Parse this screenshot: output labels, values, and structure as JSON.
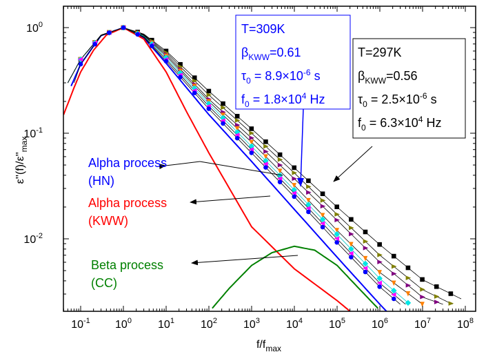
{
  "chart_data": {
    "type": "line",
    "title": "",
    "xlabel": {
      "main": "f/f",
      "sub": "max"
    },
    "ylabel": {
      "a": "ε''(f)/ε''",
      "sub": "max"
    },
    "xscale": "log",
    "yscale": "log",
    "xlim": [
      0.04,
      100000000
    ],
    "ylim": [
      0.0022,
      1.5
    ],
    "grid": false,
    "x_ticks": [
      {
        "v": 0.1,
        "base": "10",
        "exp": "-1"
      },
      {
        "v": 1,
        "base": "10",
        "exp": "0"
      },
      {
        "v": 10,
        "base": "10",
        "exp": "1"
      },
      {
        "v": 100,
        "base": "10",
        "exp": "2"
      },
      {
        "v": 1000,
        "base": "10",
        "exp": "3"
      },
      {
        "v": 10000,
        "base": "10",
        "exp": "4"
      },
      {
        "v": 100000,
        "base": "10",
        "exp": "5"
      },
      {
        "v": 1000000,
        "base": "10",
        "exp": "6"
      },
      {
        "v": 10000000,
        "base": "10",
        "exp": "7"
      },
      {
        "v": 100000000,
        "base": "10",
        "exp": "8"
      }
    ],
    "y_ticks": [
      {
        "v": 1,
        "base": "10",
        "exp": "0"
      },
      {
        "v": 0.1,
        "base": "10",
        "exp": "-1"
      },
      {
        "v": 0.01,
        "base": "10",
        "exp": "-2"
      }
    ],
    "series": [
      {
        "color": "#000000",
        "marker": "square",
        "x": [
          0.05,
          0.1,
          0.3,
          1,
          3,
          10,
          100,
          1000,
          10000,
          100000,
          1000000,
          10000000,
          80000000
        ],
        "y": [
          0.3,
          0.5,
          0.85,
          1,
          0.87,
          0.6,
          0.25,
          0.11,
          0.047,
          0.02,
          0.0088,
          0.0041,
          0.0027
        ]
      },
      {
        "color": "#808000",
        "marker": "triangle-right",
        "x": [
          0.05,
          0.1,
          0.3,
          1,
          3,
          10,
          100,
          1000,
          10000,
          100000,
          1000000,
          10000000,
          50000000
        ],
        "y": [
          0.3,
          0.5,
          0.85,
          1,
          0.86,
          0.58,
          0.23,
          0.1,
          0.042,
          0.017,
          0.007,
          0.0033,
          0.0024
        ]
      },
      {
        "color": "#800080",
        "marker": "triangle-right",
        "x": [
          0.05,
          0.1,
          0.3,
          1,
          3,
          10,
          100,
          1000,
          10000,
          100000,
          1000000,
          10000000,
          30000000
        ],
        "y": [
          0.3,
          0.5,
          0.85,
          1,
          0.85,
          0.56,
          0.21,
          0.09,
          0.037,
          0.015,
          0.006,
          0.0028,
          0.0024
        ]
      },
      {
        "color": "#ff8000",
        "marker": "triangle-down",
        "x": [
          0.05,
          0.1,
          0.3,
          1,
          3,
          10,
          100,
          1000,
          10000,
          100000,
          1000000,
          10000000
        ],
        "y": [
          0.3,
          0.5,
          0.85,
          1,
          0.84,
          0.54,
          0.2,
          0.082,
          0.032,
          0.012,
          0.0048,
          0.0024
        ]
      },
      {
        "color": "#00e5e5",
        "marker": "diamond",
        "x": [
          0.05,
          0.1,
          0.3,
          1,
          3,
          10,
          100,
          1000,
          10000,
          100000,
          1000000,
          5000000
        ],
        "y": [
          0.3,
          0.5,
          0.84,
          1,
          0.83,
          0.52,
          0.19,
          0.075,
          0.029,
          0.011,
          0.0042,
          0.0024
        ]
      },
      {
        "color": "#ff00ff",
        "marker": "triangle-left",
        "x": [
          0.05,
          0.1,
          0.3,
          1,
          3,
          10,
          100,
          1000,
          10000,
          100000,
          1000000,
          4000000
        ],
        "y": [
          0.3,
          0.5,
          0.84,
          1,
          0.82,
          0.5,
          0.18,
          0.07,
          0.027,
          0.01,
          0.0038,
          0.0024
        ]
      },
      {
        "color": "#0000ff",
        "marker": "circle",
        "x": [
          0.07,
          0.1,
          0.3,
          1,
          3,
          10,
          100,
          1000,
          10000,
          100000,
          1000000,
          3000000
        ],
        "y": [
          0.3,
          0.45,
          0.84,
          1,
          0.81,
          0.48,
          0.17,
          0.065,
          0.025,
          0.0092,
          0.0035,
          0.0024
        ]
      }
    ],
    "fits": [
      {
        "color": "#0000ff",
        "x": [
          0.06,
          0.1,
          0.3,
          1,
          3,
          10,
          100,
          1000,
          10000,
          100000,
          1000000,
          3000000
        ],
        "y": [
          0.28,
          0.45,
          0.84,
          1,
          0.8,
          0.46,
          0.15,
          0.054,
          0.019,
          0.0067,
          0.0024,
          0.0015
        ]
      },
      {
        "color": "#ff0000",
        "x": [
          0.04,
          0.07,
          0.1,
          0.2,
          0.4,
          1,
          3,
          10,
          30,
          100,
          1000,
          10000,
          100000,
          300000
        ],
        "y": [
          0.15,
          0.27,
          0.38,
          0.61,
          0.85,
          1,
          0.78,
          0.38,
          0.16,
          0.065,
          0.013,
          0.0052,
          0.0026,
          0.0018
        ]
      },
      {
        "color": "#008000",
        "x": [
          120,
          300,
          1000,
          3000,
          10000,
          30000,
          100000,
          300000,
          900000
        ],
        "y": [
          0.0022,
          0.0034,
          0.0056,
          0.0074,
          0.0085,
          0.0078,
          0.0056,
          0.0035,
          0.0022
        ]
      }
    ],
    "annotations": {
      "t309": {
        "line1": "T=309K",
        "beta": "β",
        "beta_sub": "KWW",
        "beta_val": "=0.61",
        "tau": "τ",
        "tau_sub": "0",
        "tau_val": " = 8.9×10",
        "tau_exp": "-6",
        "tau_unit": " s",
        "f": "f",
        "f_sub": "0",
        "f_val": " = 1.8×10",
        "f_exp": "4",
        "f_unit": " Hz"
      },
      "t297": {
        "line1": "T=297K",
        "beta": "β",
        "beta_sub": "KWW",
        "beta_val": "=0.56",
        "tau": "τ",
        "tau_sub": "0",
        "tau_val": " = 2.5×10",
        "tau_exp": "-6",
        "tau_unit": " s",
        "f": "f",
        "f_sub": "0",
        "f_val": " = 6.3×10",
        "f_exp": "4",
        "f_unit": " Hz"
      }
    },
    "labels": [
      {
        "line1": "Alpha process",
        "line2": "(HN)",
        "color": "#0000ff"
      },
      {
        "line1": "Alpha process",
        "line2": "(KWW)",
        "color": "#ff0000"
      },
      {
        "line1": "Beta process",
        "line2": "(CC)",
        "color": "#008000"
      }
    ]
  }
}
